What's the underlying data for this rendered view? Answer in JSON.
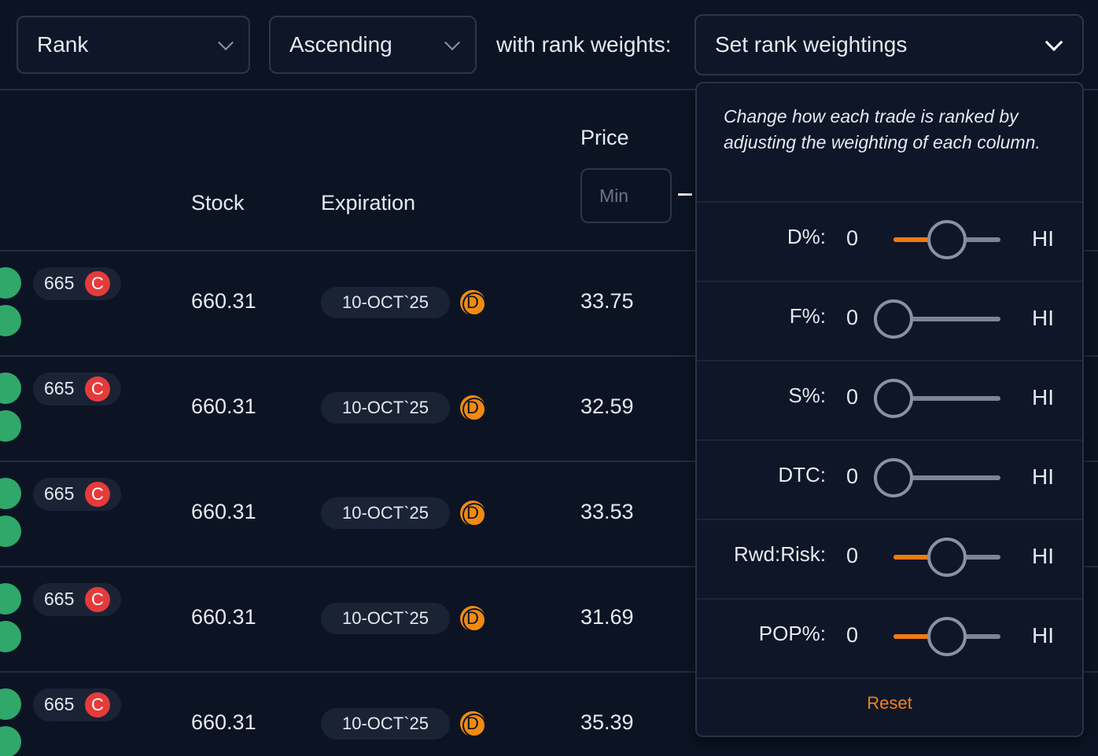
{
  "toolbar": {
    "sort_field": "Rank",
    "sort_order": "Ascending",
    "weights_label": "with rank weights:",
    "weights_select": "Set rank weightings"
  },
  "table": {
    "headers": {
      "stock": "Stock",
      "expiration": "Expiration",
      "price": "Price"
    },
    "price_min_placeholder": "Min",
    "rows": [
      {
        "strike": "665",
        "type": "C",
        "stock": "660.31",
        "expiration": "10-OCT`25",
        "exp_type": "D",
        "price": "33.75"
      },
      {
        "strike": "665",
        "type": "C",
        "stock": "660.31",
        "expiration": "10-OCT`25",
        "exp_type": "D",
        "price": "32.59"
      },
      {
        "strike": "665",
        "type": "C",
        "stock": "660.31",
        "expiration": "10-OCT`25",
        "exp_type": "D",
        "price": "33.53"
      },
      {
        "strike": "665",
        "type": "C",
        "stock": "660.31",
        "expiration": "10-OCT`25",
        "exp_type": "D",
        "price": "31.69"
      },
      {
        "strike": "665",
        "type": "C",
        "stock": "660.31",
        "expiration": "10-OCT`25",
        "exp_type": "D",
        "price": "35.39"
      }
    ]
  },
  "weights_panel": {
    "description": "Change how each trade is ranked by adjusting the weighting of each column.",
    "min_label": "0",
    "max_label": "HI",
    "weights": [
      {
        "label": "D%:",
        "value": 0.5
      },
      {
        "label": "F%:",
        "value": 0
      },
      {
        "label": "S%:",
        "value": 0
      },
      {
        "label": "DTC:",
        "value": 0
      },
      {
        "label": "Rwd:Risk:",
        "value": 0.5
      },
      {
        "label": "POP%:",
        "value": 0.5
      }
    ],
    "reset_label": "Reset"
  },
  "colors": {
    "background": "#0c1424",
    "accent": "#f07a12",
    "call_badge": "#e53b3b",
    "daily_badge": "#f08a12",
    "green_indicator": "#2fa86a"
  }
}
